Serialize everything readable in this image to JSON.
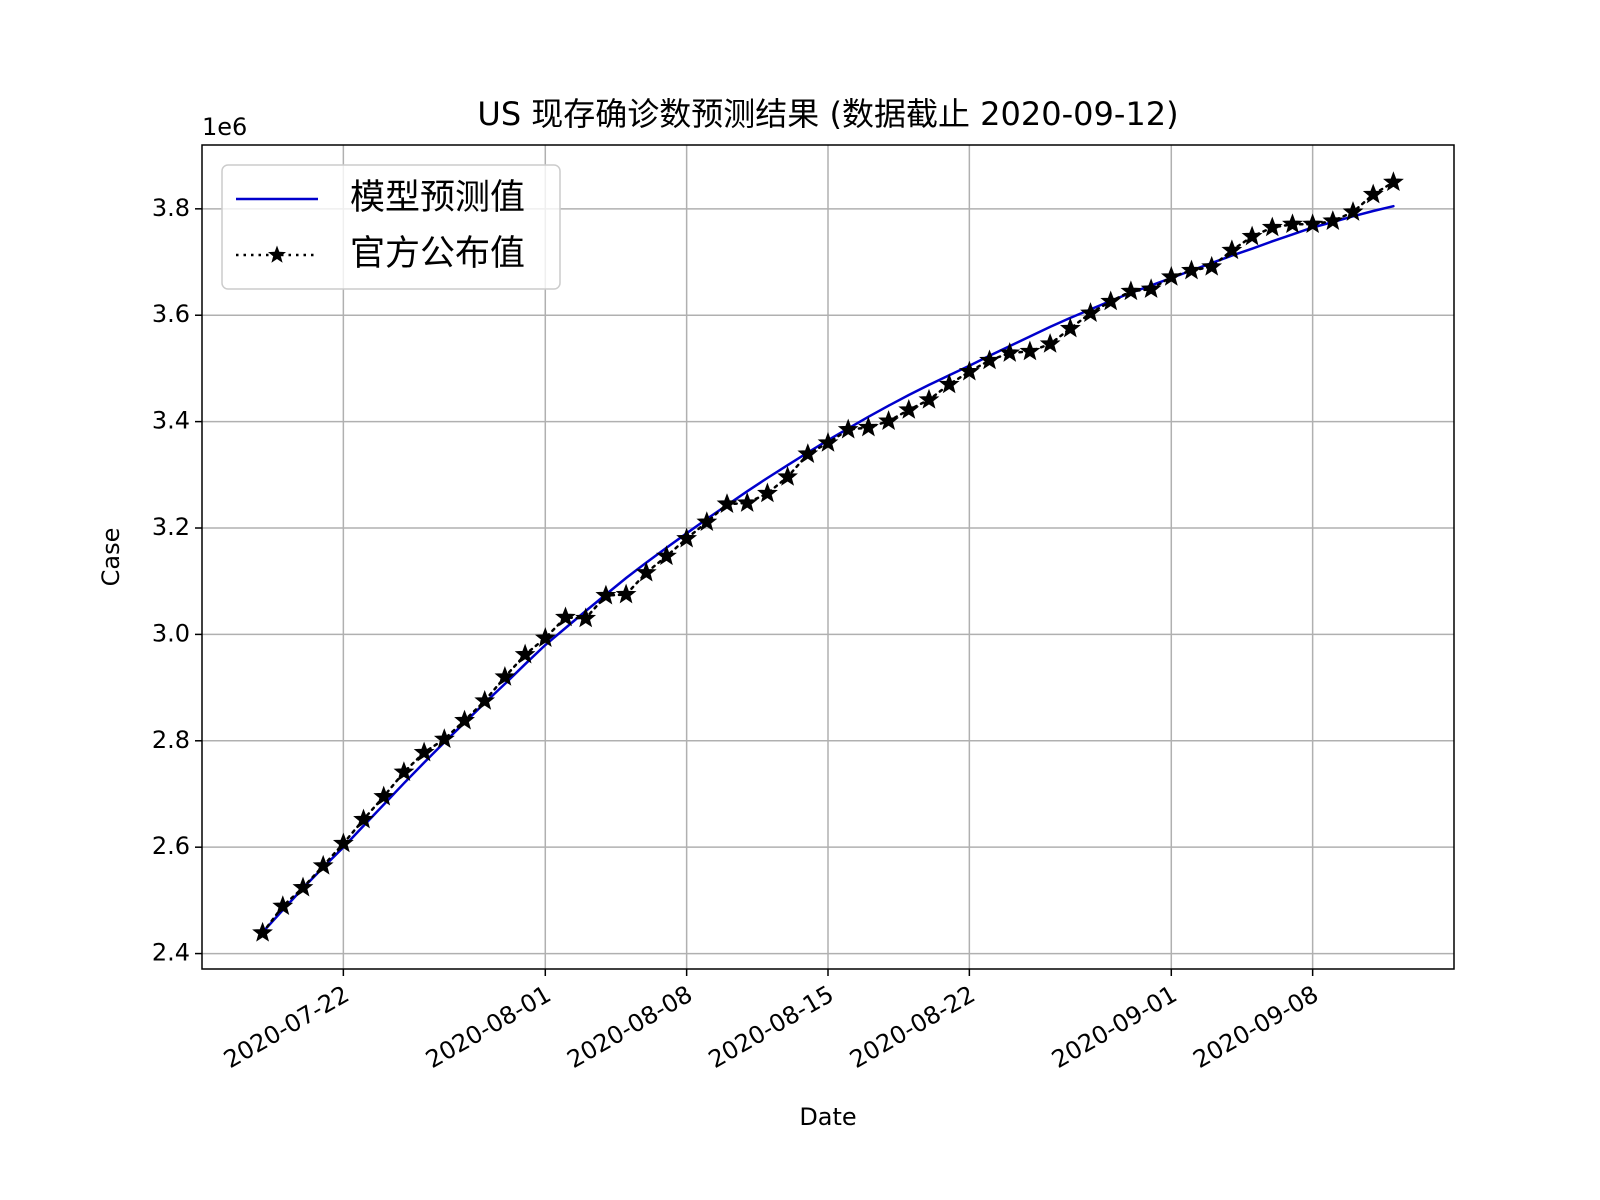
{
  "chart_data": {
    "type": "line",
    "title": "US 现存确诊数预测结果 (数据截止 2020-09-12)",
    "xlabel": "Date",
    "ylabel": "Case",
    "y_scale_label": "1e6",
    "x": [
      "2020-07-18",
      "2020-07-19",
      "2020-07-20",
      "2020-07-21",
      "2020-07-22",
      "2020-07-23",
      "2020-07-24",
      "2020-07-25",
      "2020-07-26",
      "2020-07-27",
      "2020-07-28",
      "2020-07-29",
      "2020-07-30",
      "2020-07-31",
      "2020-08-01",
      "2020-08-02",
      "2020-08-03",
      "2020-08-04",
      "2020-08-05",
      "2020-08-06",
      "2020-08-07",
      "2020-08-08",
      "2020-08-09",
      "2020-08-10",
      "2020-08-11",
      "2020-08-12",
      "2020-08-13",
      "2020-08-14",
      "2020-08-15",
      "2020-08-16",
      "2020-08-17",
      "2020-08-18",
      "2020-08-19",
      "2020-08-20",
      "2020-08-21",
      "2020-08-22",
      "2020-08-23",
      "2020-08-24",
      "2020-08-25",
      "2020-08-26",
      "2020-08-27",
      "2020-08-28",
      "2020-08-29",
      "2020-08-30",
      "2020-08-31",
      "2020-09-01",
      "2020-09-02",
      "2020-09-03",
      "2020-09-04",
      "2020-09-05",
      "2020-09-06",
      "2020-09-07",
      "2020-09-08",
      "2020-09-09",
      "2020-09-10",
      "2020-09-11",
      "2020-09-12"
    ],
    "series": [
      {
        "name": "模型预测值",
        "color": "#0000cc",
        "style": "solid",
        "marker": null,
        "values": [
          2440000,
          2482000,
          2523000,
          2562000,
          2600000,
          2640000,
          2680000,
          2720000,
          2759000,
          2797000,
          2834000,
          2871000,
          2907000,
          2944000,
          2980000,
          3012000,
          3044000,
          3075000,
          3106000,
          3135000,
          3163000,
          3190000,
          3217000,
          3243000,
          3269000,
          3294000,
          3318000,
          3342000,
          3365000,
          3387000,
          3409000,
          3430000,
          3450000,
          3469000,
          3487000,
          3505000,
          3524000,
          3542000,
          3560000,
          3578000,
          3595000,
          3611000,
          3627000,
          3642000,
          3656000,
          3670000,
          3684000,
          3698000,
          3712000,
          3725000,
          3739000,
          3752000,
          3765000,
          3775000,
          3786000,
          3796000,
          3805000
        ]
      },
      {
        "name": "官方公布值",
        "color": "#000000",
        "style": "dotted",
        "marker": "star",
        "values": [
          2439000,
          2489000,
          2524000,
          2565000,
          2607000,
          2652000,
          2695000,
          2741000,
          2778000,
          2803000,
          2838000,
          2875000,
          2920000,
          2962000,
          2993000,
          3032000,
          3030000,
          3073000,
          3075000,
          3116000,
          3147000,
          3180000,
          3211000,
          3245000,
          3247000,
          3265000,
          3296000,
          3339000,
          3360000,
          3385000,
          3389000,
          3401000,
          3422000,
          3441000,
          3470000,
          3494000,
          3515000,
          3529000,
          3532000,
          3546000,
          3575000,
          3604000,
          3626000,
          3645000,
          3649000,
          3672000,
          3684000,
          3691000,
          3722000,
          3748000,
          3765000,
          3771000,
          3771000,
          3777000,
          3794000,
          3827000,
          3850000
        ]
      }
    ],
    "xlim": [
      "2020-07-15",
      "2020-09-15"
    ],
    "xticks": [
      "2020-07-22",
      "2020-08-01",
      "2020-08-08",
      "2020-08-15",
      "2020-08-22",
      "2020-09-01",
      "2020-09-08"
    ],
    "ylim": [
      2371000,
      3920000
    ],
    "yticks": [
      {
        "value": 2400000,
        "label": "2.4"
      },
      {
        "value": 2600000,
        "label": "2.6"
      },
      {
        "value": 2800000,
        "label": "2.8"
      },
      {
        "value": 3000000,
        "label": "3.0"
      },
      {
        "value": 3200000,
        "label": "3.2"
      },
      {
        "value": 3400000,
        "label": "3.4"
      },
      {
        "value": 3600000,
        "label": "3.6"
      },
      {
        "value": 3800000,
        "label": "3.8"
      }
    ],
    "grid": true,
    "legend": "upper left"
  }
}
